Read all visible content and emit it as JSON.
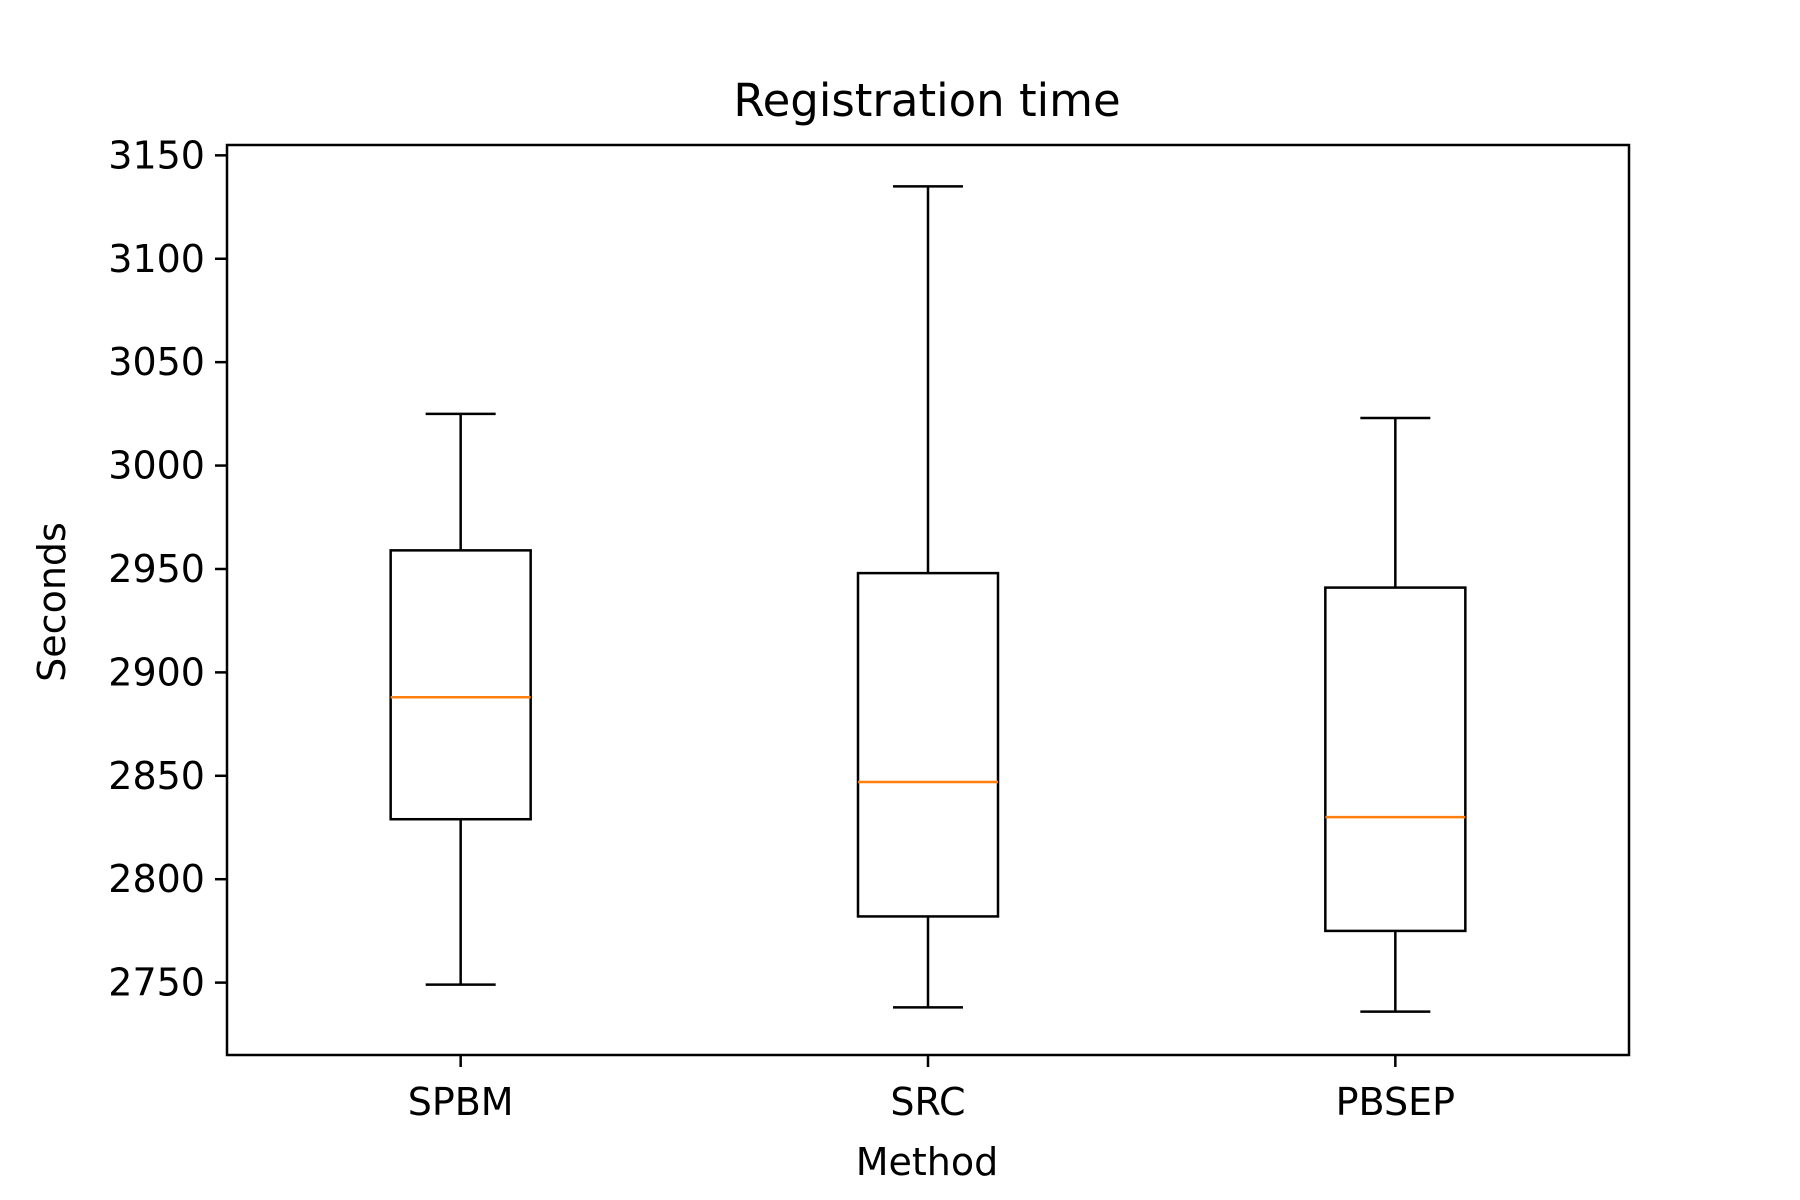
{
  "chart_data": {
    "type": "box",
    "title": "Registration time",
    "xlabel": "Method",
    "ylabel": "Seconds",
    "ylim": [
      2715,
      3155
    ],
    "yticks": [
      2750,
      2800,
      2850,
      2900,
      2950,
      3000,
      3050,
      3100,
      3150
    ],
    "grid": false,
    "colors": {
      "box": "#000000",
      "median": "#ff7f0e"
    },
    "boxes": [
      {
        "category": "SPBM",
        "whisker_low": 2749,
        "q1": 2829,
        "median": 2888,
        "q3": 2959,
        "whisker_high": 3025
      },
      {
        "category": "SRC",
        "whisker_low": 2738,
        "q1": 2782,
        "median": 2847,
        "q3": 2948,
        "whisker_high": 3135
      },
      {
        "category": "PBSEP",
        "whisker_low": 2736,
        "q1": 2775,
        "median": 2830,
        "q3": 2941,
        "whisker_high": 3023
      }
    ]
  }
}
